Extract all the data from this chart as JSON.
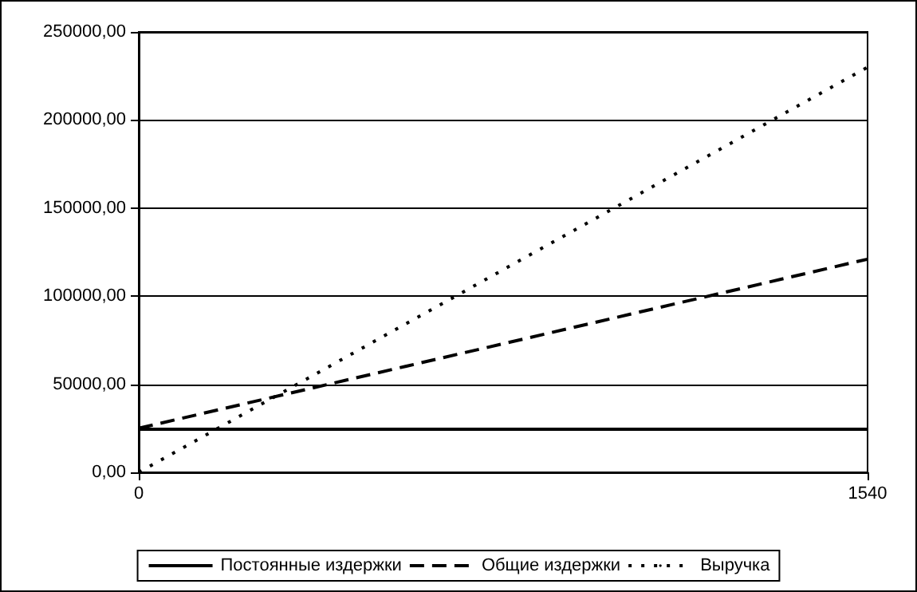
{
  "chart_data": {
    "type": "line",
    "x": [
      0,
      1540
    ],
    "xlim": [
      0,
      1540
    ],
    "xticks": [
      0,
      1540
    ],
    "ylim": [
      0,
      250000
    ],
    "yticks": [
      {
        "value": 0,
        "label": "0,00"
      },
      {
        "value": 50000,
        "label": "50000,00"
      },
      {
        "value": 100000,
        "label": "100000,00"
      },
      {
        "value": 150000,
        "label": "150000,00"
      },
      {
        "value": 200000,
        "label": "200000,00"
      },
      {
        "value": 250000,
        "label": "250000,00"
      }
    ],
    "grid": "y",
    "legend": "bottom",
    "marker": "none",
    "series": [
      {
        "name": "Постоянные издержки",
        "color": "#000000",
        "line_style": "solid",
        "values": [
          24500,
          24500
        ]
      },
      {
        "name": "Общие издержки",
        "color": "#000000",
        "line_style": "dashed",
        "values": [
          25000,
          121000
        ]
      },
      {
        "name": "Выручка",
        "color": "#000000",
        "line_style": "dotted",
        "values": [
          0,
          230000
        ]
      }
    ]
  }
}
